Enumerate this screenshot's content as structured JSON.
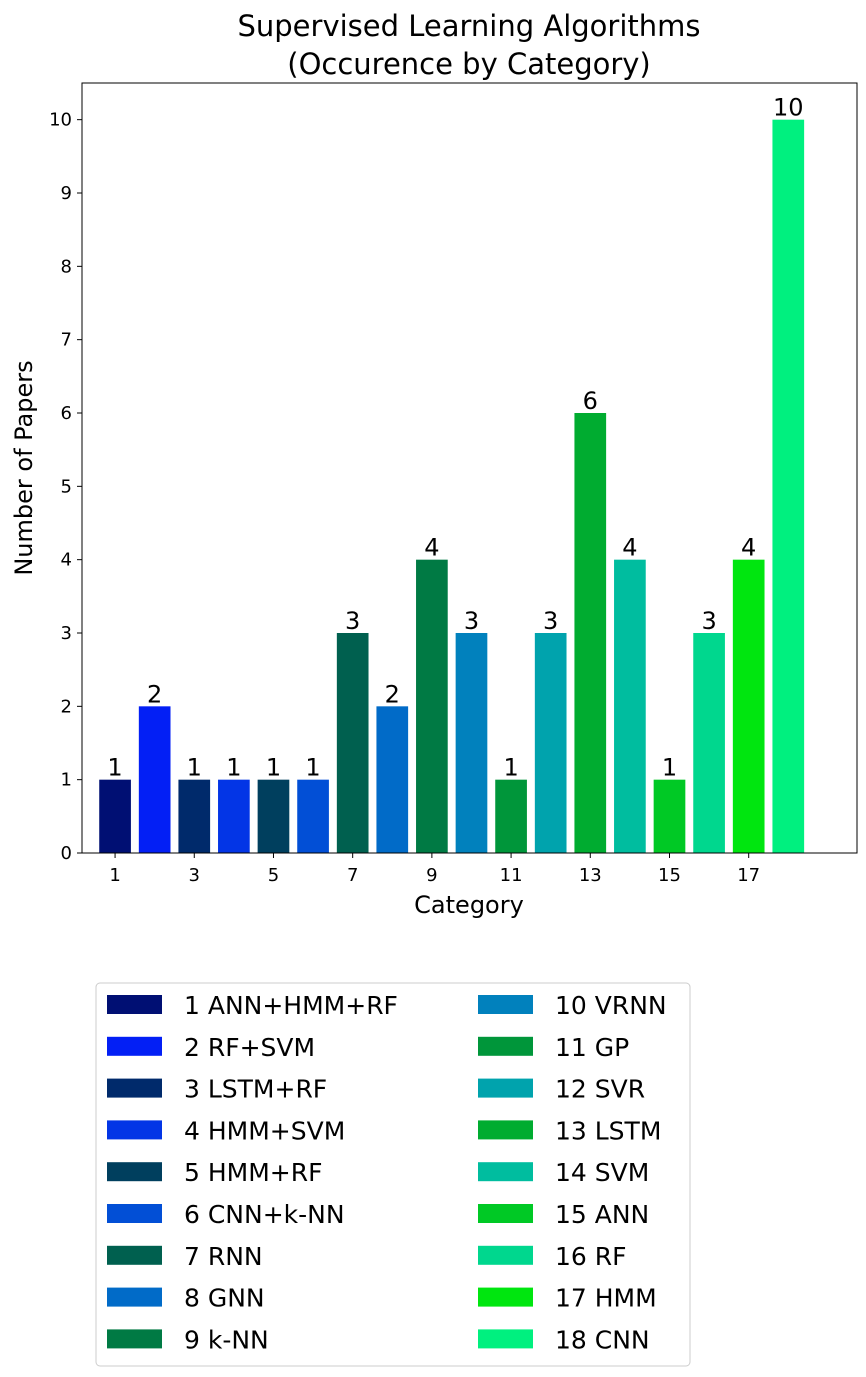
{
  "chart_data": {
    "type": "bar",
    "title": [
      "Supervised Learning Algorithms",
      "(Occurence by Category)"
    ],
    "xlabel": "Category",
    "ylabel": "Number of Papers",
    "categories": [
      1,
      2,
      3,
      4,
      5,
      6,
      7,
      8,
      9,
      10,
      11,
      12,
      13,
      14,
      15,
      16,
      17,
      18
    ],
    "values": [
      1,
      2,
      1,
      1,
      1,
      1,
      3,
      2,
      4,
      3,
      1,
      3,
      6,
      4,
      1,
      3,
      4,
      10
    ],
    "colors": [
      "#000f73",
      "#031ff5",
      "#002a6b",
      "#0335e6",
      "#003f5e",
      "#024fd6",
      "#00604f",
      "#016bc8",
      "#007a44",
      "#0181bd",
      "#00963a",
      "#00a3ad",
      "#00ac30",
      "#00bd9f",
      "#00c925",
      "#00d78e",
      "#00e60f",
      "#00f07f"
    ],
    "x_ticks": [
      1,
      3,
      5,
      7,
      9,
      11,
      13,
      15,
      17
    ],
    "y_ticks": [
      0,
      1,
      2,
      3,
      4,
      5,
      6,
      7,
      8,
      9,
      10
    ],
    "ylim": [
      0,
      10.5
    ],
    "grid": false,
    "legend": {
      "placement": "below",
      "columns": 2,
      "entries": [
        "1 ANN+HMM+RF",
        "2 RF+SVM",
        "3 LSTM+RF",
        "4 HMM+SVM",
        "5 HMM+RF",
        "6 CNN+k-NN",
        "7 RNN",
        "8 GNN",
        "9 k-NN",
        "10 VRNN",
        "11 GP",
        "12 SVR",
        "13 LSTM",
        "14 SVM",
        "15 ANN",
        "16 RF",
        "17 HMM",
        "18 CNN"
      ]
    }
  }
}
